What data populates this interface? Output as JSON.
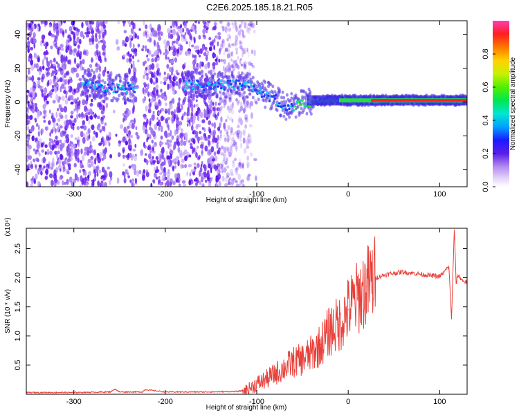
{
  "title": "C2E6.2025.185.18.21.R05",
  "chart_data": [
    {
      "type": "heatmap",
      "xlabel": "Height of straight line (km)",
      "ylabel": "Frequency (Hz)",
      "xlim": [
        -352,
        130
      ],
      "ylim": [
        -50,
        48
      ],
      "xticks": [
        -300,
        -200,
        -100,
        0,
        100
      ],
      "yticks": [
        -40,
        -20,
        0,
        20,
        40
      ],
      "colorbar": {
        "label": "Normalized spectral amplitude",
        "range": [
          0,
          1
        ],
        "ticks": [
          "0.0",
          "0.2",
          "0.4",
          "0.6",
          "0.8"
        ]
      },
      "ridge": {
        "x": [
          -285,
          -270,
          -255,
          -245,
          -235,
          -170,
          -125,
          -110,
          -95,
          -85,
          -75,
          -70,
          -60,
          -50,
          -40,
          -20,
          0,
          50,
          100,
          130
        ],
        "y": [
          12,
          8,
          8,
          9,
          8,
          10,
          10,
          10,
          6,
          3,
          0,
          -3,
          -2,
          -1,
          0,
          1,
          1,
          1,
          1,
          1
        ]
      }
    },
    {
      "type": "line",
      "xlabel": "Height of straight line (km)",
      "ylabel": "SNR (10 * v/v)",
      "y_multiplier": "(x10⁴)",
      "xlim": [
        -352,
        130
      ],
      "ylim": [
        0,
        2.85
      ],
      "xticks": [
        -300,
        -200,
        -100,
        0,
        100
      ],
      "yticks": [
        0.5,
        1.0,
        1.5,
        2.0,
        2.5
      ],
      "ytick_labels": [
        "0.5",
        "1.0",
        "1.5",
        "2.0",
        "2.5"
      ],
      "series": [
        {
          "color": "#e8403a",
          "x": [
            -352,
            -300,
            -260,
            -255,
            -250,
            -225,
            -222,
            -200,
            -150,
            -120,
            -110,
            -100,
            -90,
            -80,
            -70,
            -60,
            -50,
            -40,
            -30,
            -20,
            -10,
            0,
            10,
            20,
            30,
            40,
            50,
            60,
            70,
            80,
            90,
            100,
            105,
            110,
            113,
            116,
            118,
            120,
            125,
            130
          ],
          "y": [
            0.03,
            0.03,
            0.04,
            0.09,
            0.04,
            0.04,
            0.08,
            0.04,
            0.04,
            0.05,
            0.08,
            0.18,
            0.25,
            0.35,
            0.45,
            0.55,
            0.6,
            0.7,
            0.85,
            1.1,
            1.2,
            1.45,
            1.65,
            1.85,
            2.0,
            2.05,
            2.08,
            2.1,
            2.08,
            2.06,
            2.04,
            2.02,
            2.1,
            2.2,
            1.3,
            2.85,
            1.9,
            2.05,
            1.95,
            1.92
          ]
        }
      ]
    }
  ]
}
